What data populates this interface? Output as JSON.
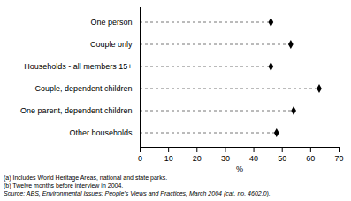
{
  "chart_data": {
    "type": "dot",
    "categories": [
      "Other households",
      "One parent, dependent children",
      "Couple, dependent children",
      "Households - all members 15+",
      "Couple only",
      "One person"
    ],
    "values": [
      48,
      54,
      63,
      46,
      53,
      46
    ],
    "xlim": [
      0,
      70
    ],
    "xticks": [
      0,
      10,
      20,
      30,
      40,
      50,
      60,
      70
    ],
    "xlabel": "%",
    "marker": "diamond",
    "line_style": "dashed",
    "grid": false,
    "annotations": [
      "(a) Includes World Heritage Areas, national and state parks.",
      "(b) Twelve months before interview in 2004.",
      "Source: ABS, Environmental Issues: People’s Views and Practices, March 2004 (cat.  no.  4602.0)."
    ]
  }
}
